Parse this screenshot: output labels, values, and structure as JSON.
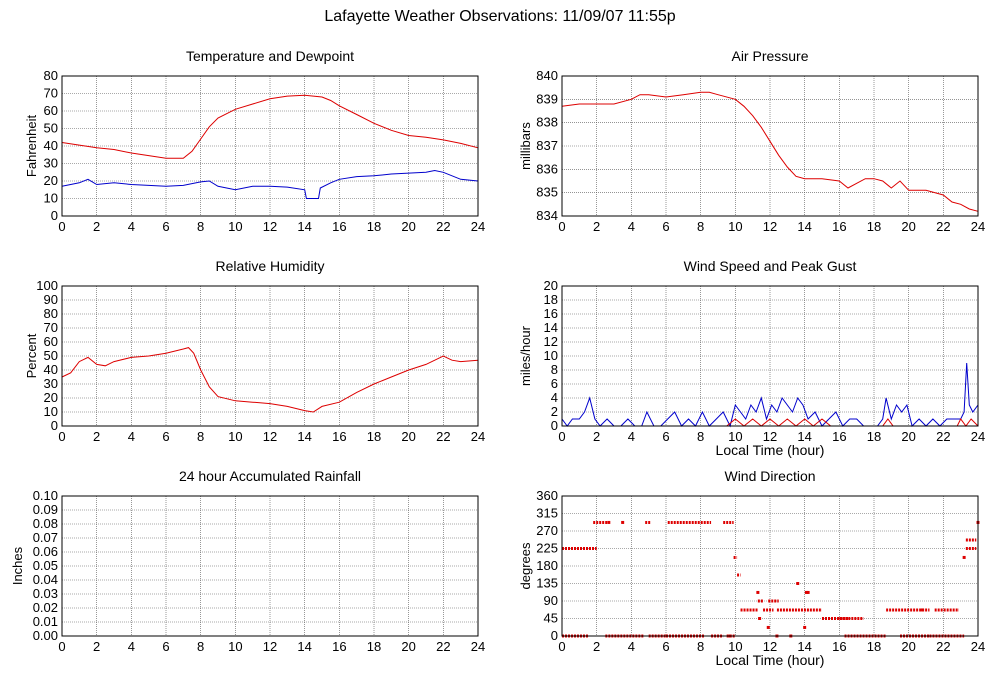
{
  "title": "Lafayette Weather Observations: 11/09/07 11:55p",
  "colors": {
    "red": "#dd0000",
    "blue": "#0000cc"
  },
  "chart_data": [
    {
      "id": "temp",
      "type": "line",
      "title": "Temperature and Dewpoint",
      "ylabel": "Fahrenheit",
      "xlabel": "",
      "xlim": [
        0,
        24
      ],
      "ylim": [
        0,
        80
      ],
      "xticks": [
        0,
        2,
        4,
        6,
        8,
        10,
        12,
        14,
        16,
        18,
        20,
        22,
        24
      ],
      "yticks": [
        0,
        10,
        20,
        30,
        40,
        50,
        60,
        70,
        80
      ],
      "grid": true,
      "series": [
        {
          "color": "#dd0000",
          "x": [
            0,
            1,
            2,
            3,
            4,
            5,
            6,
            7,
            7.5,
            8,
            8.5,
            9,
            10,
            11,
            12,
            13,
            14,
            14.5,
            15,
            15.5,
            16,
            17,
            18,
            19,
            20,
            21,
            22,
            23,
            24
          ],
          "y": [
            42,
            40.5,
            39,
            38,
            36,
            34.5,
            33,
            33,
            37,
            44,
            51,
            56,
            61,
            64,
            67,
            68.5,
            69,
            68.5,
            68,
            66,
            63,
            58,
            53,
            49,
            46,
            45,
            43.5,
            41.5,
            39
          ]
        },
        {
          "color": "#0000cc",
          "x": [
            0,
            1,
            1.5,
            2,
            3,
            4,
            5,
            6,
            7,
            8,
            8.5,
            9,
            10,
            11,
            12,
            13,
            14,
            14.1,
            14.8,
            14.9,
            15.5,
            16,
            17,
            18,
            19,
            20,
            21,
            21.5,
            22,
            23,
            24
          ],
          "y": [
            17,
            19,
            21,
            18,
            19,
            18,
            17.5,
            17,
            17.5,
            19.5,
            20,
            17,
            15,
            17,
            17,
            16.5,
            15,
            10,
            10,
            16,
            19,
            21,
            22.5,
            23,
            24,
            24.5,
            25,
            26,
            25,
            21,
            20
          ]
        }
      ]
    },
    {
      "id": "pressure",
      "type": "line",
      "title": "Air Pressure",
      "ylabel": "millibars",
      "xlabel": "",
      "xlim": [
        0,
        24
      ],
      "ylim": [
        834,
        840
      ],
      "xticks": [
        0,
        2,
        4,
        6,
        8,
        10,
        12,
        14,
        16,
        18,
        20,
        22,
        24
      ],
      "yticks": [
        834,
        835,
        836,
        837,
        838,
        839,
        840
      ],
      "grid": true,
      "series": [
        {
          "color": "#dd0000",
          "x": [
            0,
            1,
            2,
            3,
            4,
            4.5,
            5,
            6,
            7,
            8,
            8.5,
            9,
            10,
            10.5,
            11,
            11.5,
            12,
            12.5,
            13,
            13.5,
            14,
            15,
            16,
            16.5,
            17,
            17.5,
            18,
            18.5,
            19,
            19.5,
            20,
            21,
            22,
            22.5,
            23,
            23.5,
            24
          ],
          "y": [
            838.7,
            838.8,
            838.8,
            838.8,
            839.0,
            839.2,
            839.2,
            839.1,
            839.2,
            839.3,
            839.3,
            839.2,
            839.0,
            838.7,
            838.3,
            837.8,
            837.2,
            836.6,
            836.1,
            835.7,
            835.6,
            835.6,
            835.5,
            835.2,
            835.4,
            835.6,
            835.6,
            835.5,
            835.2,
            835.5,
            835.1,
            835.1,
            834.9,
            834.6,
            834.5,
            834.3,
            834.2
          ]
        }
      ]
    },
    {
      "id": "humidity",
      "type": "line",
      "title": "Relative Humidity",
      "ylabel": "Percent",
      "xlabel": "",
      "xlim": [
        0,
        24
      ],
      "ylim": [
        0,
        100
      ],
      "xticks": [
        0,
        2,
        4,
        6,
        8,
        10,
        12,
        14,
        16,
        18,
        20,
        22,
        24
      ],
      "yticks": [
        0,
        10,
        20,
        30,
        40,
        50,
        60,
        70,
        80,
        90,
        100
      ],
      "grid": true,
      "series": [
        {
          "color": "#dd0000",
          "x": [
            0,
            0.5,
            1,
            1.5,
            2,
            2.5,
            3,
            4,
            5,
            6,
            7,
            7.3,
            7.6,
            8,
            8.5,
            9,
            10,
            11,
            12,
            13,
            14,
            14.5,
            15,
            16,
            17,
            18,
            19,
            20,
            21,
            22,
            22.5,
            23,
            24
          ],
          "y": [
            35,
            38,
            46,
            49,
            44,
            43,
            46,
            49,
            50,
            52,
            55,
            56,
            52,
            40,
            28,
            21,
            18,
            17,
            16,
            14,
            11,
            10,
            14,
            17,
            24,
            30,
            35,
            40,
            44,
            50,
            47,
            46,
            47
          ]
        }
      ]
    },
    {
      "id": "wind",
      "type": "line",
      "title": "Wind Speed and Peak Gust",
      "ylabel": "miles/hour",
      "xlabel": "Local Time (hour)",
      "xlim": [
        0,
        24
      ],
      "ylim": [
        0,
        20
      ],
      "xticks": [
        0,
        2,
        4,
        6,
        8,
        10,
        12,
        14,
        16,
        18,
        20,
        22,
        24
      ],
      "yticks": [
        0,
        2,
        4,
        6,
        8,
        10,
        12,
        14,
        16,
        18,
        20
      ],
      "grid": true,
      "series": [
        {
          "color": "#0000cc",
          "x": [
            0,
            0.3,
            0.6,
            1,
            1.3,
            1.6,
            1.9,
            2.2,
            2.6,
            3,
            3.4,
            3.8,
            4.2,
            4.6,
            4.9,
            5.3,
            5.7,
            6.1,
            6.5,
            6.9,
            7.3,
            7.7,
            8.1,
            8.5,
            8.9,
            9.3,
            9.7,
            10,
            10.3,
            10.6,
            10.9,
            11.2,
            11.5,
            11.8,
            12.1,
            12.4,
            12.7,
            13,
            13.3,
            13.6,
            13.9,
            14.2,
            14.6,
            15,
            15.4,
            15.8,
            16.2,
            16.6,
            17,
            17.4,
            17.8,
            18.2,
            18.5,
            18.7,
            19,
            19.3,
            19.6,
            19.9,
            20.2,
            20.6,
            21,
            21.4,
            21.8,
            22.2,
            22.6,
            23,
            23.2,
            23.35,
            23.5,
            23.7,
            24
          ],
          "y": [
            1,
            0,
            1,
            1,
            2,
            4,
            1,
            0,
            1,
            0,
            0,
            1,
            0,
            0,
            2,
            0,
            0,
            1,
            2,
            0,
            1,
            0,
            2,
            0,
            1,
            2,
            0,
            3,
            2,
            1,
            3,
            2,
            4,
            1,
            3,
            2,
            4,
            3,
            2,
            4,
            3,
            1,
            2,
            0,
            1,
            2,
            0,
            1,
            1,
            0,
            0,
            0,
            1,
            4,
            1,
            3,
            2,
            3,
            0,
            1,
            0,
            1,
            0,
            1,
            1,
            1,
            2,
            9,
            3,
            2,
            3
          ]
        },
        {
          "color": "#dd0000",
          "x": [
            0,
            9.5,
            10,
            10.5,
            11,
            11.5,
            12,
            12.5,
            13,
            13.5,
            14,
            14.5,
            15,
            15.5,
            16,
            18.5,
            18.8,
            19.1,
            19.5,
            22.8,
            23,
            23.3,
            23.6,
            24
          ],
          "y": [
            0,
            0,
            1,
            0,
            1,
            0,
            1,
            0,
            1,
            0,
            1,
            0,
            1,
            0,
            0,
            0,
            1,
            0,
            0,
            0,
            1,
            0,
            1,
            0
          ]
        }
      ]
    },
    {
      "id": "rain",
      "type": "line",
      "title": "24 hour Accumulated Rainfall",
      "ylabel": "Inches",
      "xlabel": "",
      "xlim": [
        0,
        24
      ],
      "ylim": [
        0,
        0.1
      ],
      "xticks": [
        0,
        2,
        4,
        6,
        8,
        10,
        12,
        14,
        16,
        18,
        20,
        22,
        24
      ],
      "yticks": [
        "0.00",
        "0.01",
        "0.02",
        "0.03",
        "0.04",
        "0.05",
        "0.06",
        "0.07",
        "0.08",
        "0.09",
        "0.10"
      ],
      "grid": true,
      "series": [
        {
          "color": "#dd0000",
          "x": [
            0,
            24
          ],
          "y": [
            0,
            0
          ]
        }
      ]
    },
    {
      "id": "direction",
      "type": "scatter",
      "title": "Wind Direction",
      "ylabel": "degrees",
      "xlabel": "Local Time (hour)",
      "xlim": [
        0,
        24
      ],
      "ylim": [
        0,
        360
      ],
      "xticks": [
        0,
        2,
        4,
        6,
        8,
        10,
        12,
        14,
        16,
        18,
        20,
        22,
        24
      ],
      "yticks": [
        0,
        45,
        90,
        135,
        180,
        225,
        270,
        315,
        360
      ],
      "grid": true,
      "segments": [
        {
          "x0": 0,
          "x1": 2,
          "y": 225
        },
        {
          "x0": 0,
          "x1": 1.5,
          "y": 0
        },
        {
          "x0": 1.8,
          "x1": 2.6,
          "y": 292
        },
        {
          "x0": 2.5,
          "x1": 4.7,
          "y": 0
        },
        {
          "x0": 4.8,
          "x1": 5.1,
          "y": 292
        },
        {
          "x0": 5,
          "x1": 6,
          "y": 0
        },
        {
          "x0": 6.1,
          "x1": 8.6,
          "y": 292
        },
        {
          "x0": 6,
          "x1": 8.2,
          "y": 0
        },
        {
          "x0": 8.6,
          "x1": 9.3,
          "y": 0
        },
        {
          "x0": 9.3,
          "x1": 9.9,
          "y": 292
        },
        {
          "x0": 9.5,
          "x1": 10,
          "y": 0
        },
        {
          "x0": 9.9,
          "x1": 10.1,
          "y": 202
        },
        {
          "x0": 10.1,
          "x1": 10.3,
          "y": 157
        },
        {
          "x0": 10.3,
          "x1": 11.3,
          "y": 67
        },
        {
          "x0": 11.3,
          "x1": 11.6,
          "y": 90
        },
        {
          "x0": 11.6,
          "x1": 12.2,
          "y": 67
        },
        {
          "x0": 11.9,
          "x1": 12.5,
          "y": 90
        },
        {
          "x0": 12.4,
          "x1": 14.3,
          "y": 67
        },
        {
          "x0": 14.3,
          "x1": 15,
          "y": 67
        },
        {
          "x0": 15,
          "x1": 16.5,
          "y": 45
        },
        {
          "x0": 16,
          "x1": 17.4,
          "y": 45
        },
        {
          "x0": 16.3,
          "x1": 18.7,
          "y": 0
        },
        {
          "x0": 18.7,
          "x1": 21.2,
          "y": 67
        },
        {
          "x0": 19.5,
          "x1": 21.2,
          "y": 0
        },
        {
          "x0": 21.5,
          "x1": 22.9,
          "y": 67
        },
        {
          "x0": 21.2,
          "x1": 23.2,
          "y": 0
        },
        {
          "x0": 23.3,
          "x1": 23.9,
          "y": 225
        },
        {
          "x0": 23.3,
          "x1": 23.9,
          "y": 247
        }
      ],
      "points": [
        {
          "x": 2.7,
          "y": 292
        },
        {
          "x": 3.5,
          "y": 292
        },
        {
          "x": 11.3,
          "y": 112
        },
        {
          "x": 11.4,
          "y": 45
        },
        {
          "x": 11.9,
          "y": 22
        },
        {
          "x": 13.2,
          "y": 0
        },
        {
          "x": 13.6,
          "y": 135
        },
        {
          "x": 14.0,
          "y": 22
        },
        {
          "x": 14.1,
          "y": 112
        },
        {
          "x": 14.2,
          "y": 112
        },
        {
          "x": 20.8,
          "y": 67
        },
        {
          "x": 23.2,
          "y": 202
        },
        {
          "x": 24,
          "y": 292
        },
        {
          "x": 9.7,
          "y": 0
        },
        {
          "x": 12.4,
          "y": 0
        }
      ]
    }
  ]
}
